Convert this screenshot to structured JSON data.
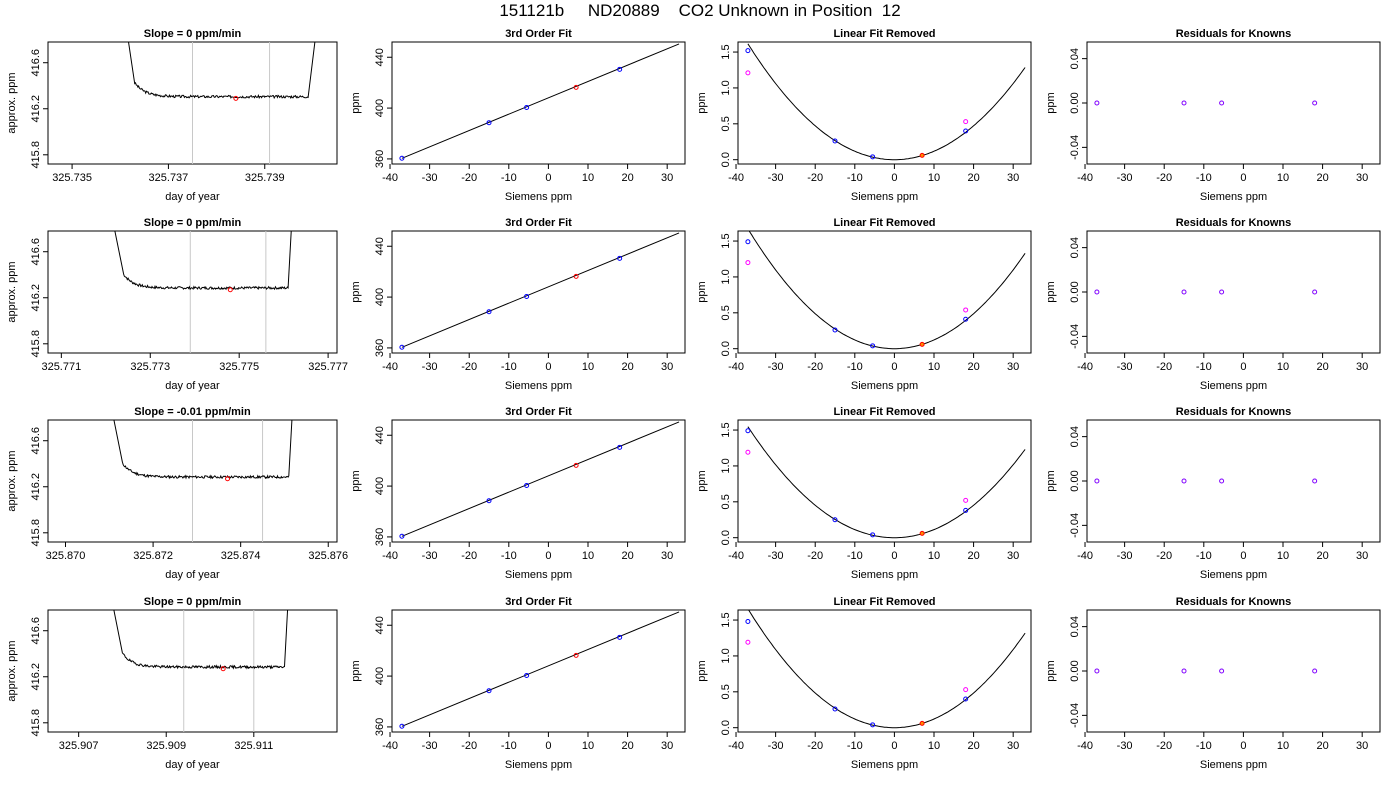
{
  "page": {
    "title": "151121b     ND20889    CO2 Unknown in Position  12"
  },
  "colors": {
    "background": "#ffffff",
    "axis": "#000000",
    "trace": "#000000",
    "vline": "#c8c8c8",
    "unknown_point": "#ff0000",
    "known_point": "#0000ff",
    "linear_residual_point": "#ff00ff",
    "unknown_removed_point": "#ff8c00",
    "residual_point": "#8000ff"
  },
  "chart_data": [
    {
      "type": "line",
      "panel": "trace",
      "title": "Slope =  0  ppm/min",
      "xlabel": "day of year",
      "ylabel": "approx. ppm",
      "xlim": [
        325.7345,
        325.7405
      ],
      "ylim": [
        415.72,
        416.78
      ],
      "xticks": [
        "325.735",
        "325.737",
        "325.739"
      ],
      "xtick_values": [
        325.735,
        325.737,
        325.739
      ],
      "yticks": [
        "415.8",
        "416.2",
        "416.6"
      ],
      "ytick_values": [
        415.8,
        416.2,
        416.6
      ],
      "t_start": 325.7361,
      "t_drop_end": 325.7363,
      "t_rise": 325.7399,
      "t_end": 325.7401,
      "baseline": 416.305,
      "noise_seed": 3,
      "vlines": [
        325.7375,
        325.7391
      ],
      "marker": {
        "x": 325.7384,
        "y": 416.29
      }
    },
    {
      "type": "line",
      "panel": "fit",
      "title": "3rd Order Fit",
      "xlabel": "Siemens ppm",
      "ylabel": "ppm",
      "xlim": [
        -39.5,
        34.5
      ],
      "ylim": [
        356,
        452
      ],
      "xticks": [
        "-40",
        "-30",
        "-20",
        "-10",
        "0",
        "10",
        "20",
        "30"
      ],
      "xtick_values": [
        -40,
        -30,
        -20,
        -10,
        0,
        10,
        20,
        30
      ],
      "yticks": [
        "360",
        "400",
        "440"
      ],
      "ytick_values": [
        360,
        400,
        440
      ],
      "fit_line": {
        "x0": -37,
        "y0": 360.5,
        "x1": 33,
        "y1": 450.5
      },
      "known_points": [
        {
          "x": -37,
          "y": 360.5
        },
        {
          "x": -15,
          "y": 388.5
        },
        {
          "x": -5.5,
          "y": 400.5
        },
        {
          "x": 18,
          "y": 430.5
        }
      ],
      "unknown_point": {
        "x": 7,
        "y": 416.3
      }
    },
    {
      "type": "scatter",
      "panel": "linear_removed",
      "title": "Linear Fit Removed",
      "xlabel": "Siemens ppm",
      "ylabel": "ppm",
      "xlim": [
        -39.5,
        34.5
      ],
      "ylim": [
        -0.06,
        1.64
      ],
      "xticks": [
        "-40",
        "-30",
        "-20",
        "-10",
        "0",
        "10",
        "20",
        "30"
      ],
      "xtick_values": [
        -40,
        -30,
        -20,
        -10,
        0,
        10,
        20,
        30
      ],
      "yticks": [
        "0.0",
        "0.5",
        "1.0",
        "1.5"
      ],
      "ytick_values": [
        0,
        0.5,
        1.0,
        1.5
      ],
      "curve_coef": 0.00118,
      "known_points": [
        {
          "x": -37,
          "y": 1.52
        },
        {
          "x": -15,
          "y": 0.26
        },
        {
          "x": -5.5,
          "y": 0.04
        },
        {
          "x": 18,
          "y": 0.4
        }
      ],
      "linear_points": [
        {
          "x": -37,
          "y": 1.21
        },
        {
          "x": 18,
          "y": 0.53
        }
      ],
      "unknown_point": {
        "x": 7,
        "y": 0.06
      }
    },
    {
      "type": "scatter",
      "panel": "residuals",
      "title": "Residuals for Knowns",
      "xlabel": "Siemens ppm",
      "ylabel": "ppm",
      "xlim": [
        -39.5,
        34.5
      ],
      "ylim": [
        -0.055,
        0.055
      ],
      "xticks": [
        "-40",
        "-30",
        "-20",
        "-10",
        "0",
        "10",
        "20",
        "30"
      ],
      "xtick_values": [
        -40,
        -30,
        -20,
        -10,
        0,
        10,
        20,
        30
      ],
      "yticks": [
        "-0.04",
        "0.00",
        "0.04"
      ],
      "ytick_values": [
        -0.04,
        0,
        0.04
      ],
      "points": [
        {
          "x": -37,
          "y": 0
        },
        {
          "x": -15,
          "y": 0
        },
        {
          "x": -5.5,
          "y": 0
        },
        {
          "x": 18,
          "y": 0
        }
      ]
    },
    {
      "type": "line",
      "panel": "trace",
      "title": "Slope =  0  ppm/min",
      "xlabel": "day of year",
      "ylabel": "approx. ppm",
      "xlim": [
        325.7707,
        325.7772
      ],
      "ylim": [
        415.72,
        416.78
      ],
      "xticks": [
        "325.771",
        "325.773",
        "325.775",
        "325.777"
      ],
      "xtick_values": [
        325.771,
        325.773,
        325.775,
        325.777
      ],
      "yticks": [
        "415.8",
        "416.2",
        "416.6"
      ],
      "ytick_values": [
        415.8,
        416.2,
        416.6
      ],
      "t_start": 325.7721,
      "t_drop_end": 325.7724,
      "t_rise": 325.7761,
      "t_end": 325.7762,
      "baseline": 416.285,
      "noise_seed": 7,
      "vlines": [
        325.7739,
        325.7756
      ],
      "marker": {
        "x": 325.7748,
        "y": 416.27
      }
    },
    {
      "type": "line",
      "panel": "fit",
      "title": "3rd Order Fit",
      "xlabel": "Siemens ppm",
      "ylabel": "ppm",
      "xlim": [
        -39.5,
        34.5
      ],
      "ylim": [
        356,
        452
      ],
      "xticks": [
        "-40",
        "-30",
        "-20",
        "-10",
        "0",
        "10",
        "20",
        "30"
      ],
      "xtick_values": [
        -40,
        -30,
        -20,
        -10,
        0,
        10,
        20,
        30
      ],
      "yticks": [
        "360",
        "400",
        "440"
      ],
      "ytick_values": [
        360,
        400,
        440
      ],
      "fit_line": {
        "x0": -37,
        "y0": 360.5,
        "x1": 33,
        "y1": 450.5
      },
      "known_points": [
        {
          "x": -37,
          "y": 360.5
        },
        {
          "x": -15,
          "y": 388.5
        },
        {
          "x": -5.5,
          "y": 400.5
        },
        {
          "x": 18,
          "y": 430.5
        }
      ],
      "unknown_point": {
        "x": 7,
        "y": 416.3
      }
    },
    {
      "type": "scatter",
      "panel": "linear_removed",
      "title": "Linear Fit Removed",
      "xlabel": "Siemens ppm",
      "ylabel": "ppm",
      "xlim": [
        -39.5,
        34.5
      ],
      "ylim": [
        -0.06,
        1.64
      ],
      "xticks": [
        "-40",
        "-30",
        "-20",
        "-10",
        "0",
        "10",
        "20",
        "30"
      ],
      "xtick_values": [
        -40,
        -30,
        -20,
        -10,
        0,
        10,
        20,
        30
      ],
      "yticks": [
        "0.0",
        "0.5",
        "1.0",
        "1.5"
      ],
      "ytick_values": [
        0,
        0.5,
        1.0,
        1.5
      ],
      "curve_coef": 0.00122,
      "known_points": [
        {
          "x": -37,
          "y": 1.49
        },
        {
          "x": -15,
          "y": 0.26
        },
        {
          "x": -5.5,
          "y": 0.04
        },
        {
          "x": 18,
          "y": 0.41
        }
      ],
      "linear_points": [
        {
          "x": -37,
          "y": 1.2
        },
        {
          "x": 18,
          "y": 0.54
        }
      ],
      "unknown_point": {
        "x": 7,
        "y": 0.06
      }
    },
    {
      "type": "scatter",
      "panel": "residuals",
      "title": "Residuals for Knowns",
      "xlabel": "Siemens ppm",
      "ylabel": "ppm",
      "xlim": [
        -39.5,
        34.5
      ],
      "ylim": [
        -0.055,
        0.055
      ],
      "xticks": [
        "-40",
        "-30",
        "-20",
        "-10",
        "0",
        "10",
        "20",
        "30"
      ],
      "xtick_values": [
        -40,
        -30,
        -20,
        -10,
        0,
        10,
        20,
        30
      ],
      "yticks": [
        "-0.04",
        "0.00",
        "0.04"
      ],
      "ytick_values": [
        -0.04,
        0,
        0.04
      ],
      "points": [
        {
          "x": -37,
          "y": 0
        },
        {
          "x": -15,
          "y": 0
        },
        {
          "x": -5.5,
          "y": 0
        },
        {
          "x": 18,
          "y": 0
        }
      ]
    },
    {
      "type": "line",
      "panel": "trace",
      "title": "Slope =  -0.01  ppm/min",
      "xlabel": "day of year",
      "ylabel": "approx. ppm",
      "xlim": [
        325.8696,
        325.8762
      ],
      "ylim": [
        415.72,
        416.78
      ],
      "xticks": [
        "325.870",
        "325.872",
        "325.874",
        "325.876"
      ],
      "xtick_values": [
        325.87,
        325.872,
        325.874,
        325.876
      ],
      "yticks": [
        "415.8",
        "416.2",
        "416.6"
      ],
      "ytick_values": [
        415.8,
        416.2,
        416.6
      ],
      "t_start": 325.871,
      "t_drop_end": 325.8713,
      "t_rise": 325.8751,
      "t_end": 325.8752,
      "baseline": 416.285,
      "noise_seed": 11,
      "vlines": [
        325.8729,
        325.8745
      ],
      "marker": {
        "x": 325.8737,
        "y": 416.27
      }
    },
    {
      "type": "line",
      "panel": "fit",
      "title": "3rd Order Fit",
      "xlabel": "Siemens ppm",
      "ylabel": "ppm",
      "xlim": [
        -39.5,
        34.5
      ],
      "ylim": [
        356,
        452
      ],
      "xticks": [
        "-40",
        "-30",
        "-20",
        "-10",
        "0",
        "10",
        "20",
        "30"
      ],
      "xtick_values": [
        -40,
        -30,
        -20,
        -10,
        0,
        10,
        20,
        30
      ],
      "yticks": [
        "360",
        "400",
        "440"
      ],
      "ytick_values": [
        360,
        400,
        440
      ],
      "fit_line": {
        "x0": -37,
        "y0": 360.5,
        "x1": 33,
        "y1": 450.5
      },
      "known_points": [
        {
          "x": -37,
          "y": 360.5
        },
        {
          "x": -15,
          "y": 388.5
        },
        {
          "x": -5.5,
          "y": 400.5
        },
        {
          "x": 18,
          "y": 430.5
        }
      ],
      "unknown_point": {
        "x": 7,
        "y": 416.3
      }
    },
    {
      "type": "scatter",
      "panel": "linear_removed",
      "title": "Linear Fit Removed",
      "xlabel": "Siemens ppm",
      "ylabel": "ppm",
      "xlim": [
        -39.5,
        34.5
      ],
      "ylim": [
        -0.06,
        1.64
      ],
      "xticks": [
        "-40",
        "-30",
        "-20",
        "-10",
        "0",
        "10",
        "20",
        "30"
      ],
      "xtick_values": [
        -40,
        -30,
        -20,
        -10,
        0,
        10,
        20,
        30
      ],
      "yticks": [
        "0.0",
        "0.5",
        "1.0",
        "1.5"
      ],
      "ytick_values": [
        0,
        0.5,
        1.0,
        1.5
      ],
      "curve_coef": 0.00113,
      "known_points": [
        {
          "x": -37,
          "y": 1.49
        },
        {
          "x": -15,
          "y": 0.25
        },
        {
          "x": -5.5,
          "y": 0.04
        },
        {
          "x": 18,
          "y": 0.38
        }
      ],
      "linear_points": [
        {
          "x": -37,
          "y": 1.19
        },
        {
          "x": 18,
          "y": 0.52
        }
      ],
      "unknown_point": {
        "x": 7,
        "y": 0.06
      }
    },
    {
      "type": "scatter",
      "panel": "residuals",
      "title": "Residuals for Knowns",
      "xlabel": "Siemens ppm",
      "ylabel": "ppm",
      "xlim": [
        -39.5,
        34.5
      ],
      "ylim": [
        -0.055,
        0.055
      ],
      "xticks": [
        "-40",
        "-30",
        "-20",
        "-10",
        "0",
        "10",
        "20",
        "30"
      ],
      "xtick_values": [
        -40,
        -30,
        -20,
        -10,
        0,
        10,
        20,
        30
      ],
      "yticks": [
        "-0.04",
        "0.00",
        "0.04"
      ],
      "ytick_values": [
        -0.04,
        0,
        0.04
      ],
      "points": [
        {
          "x": -37,
          "y": 0
        },
        {
          "x": -15,
          "y": 0
        },
        {
          "x": -5.5,
          "y": 0
        },
        {
          "x": 18,
          "y": 0
        }
      ]
    },
    {
      "type": "line",
      "panel": "trace",
      "title": "Slope =  0  ppm/min",
      "xlabel": "day of year",
      "ylabel": "approx. ppm",
      "xlim": [
        325.9063,
        325.9129
      ],
      "ylim": [
        415.72,
        416.78
      ],
      "xticks": [
        "325.907",
        "325.909",
        "325.911"
      ],
      "xtick_values": [
        325.907,
        325.909,
        325.911
      ],
      "yticks": [
        "415.8",
        "416.2",
        "416.6"
      ],
      "ytick_values": [
        415.8,
        416.2,
        416.6
      ],
      "t_start": 325.9077,
      "t_drop_end": 325.908,
      "t_rise": 325.9117,
      "t_end": 325.9118,
      "baseline": 416.285,
      "noise_seed": 19,
      "vlines": [
        325.9094,
        325.911
      ],
      "marker": {
        "x": 325.9103,
        "y": 416.27
      }
    },
    {
      "type": "line",
      "panel": "fit",
      "title": "3rd Order Fit",
      "xlabel": "Siemens ppm",
      "ylabel": "ppm",
      "xlim": [
        -39.5,
        34.5
      ],
      "ylim": [
        356,
        452
      ],
      "xticks": [
        "-40",
        "-30",
        "-20",
        "-10",
        "0",
        "10",
        "20",
        "30"
      ],
      "xtick_values": [
        -40,
        -30,
        -20,
        -10,
        0,
        10,
        20,
        30
      ],
      "yticks": [
        "360",
        "400",
        "440"
      ],
      "ytick_values": [
        360,
        400,
        440
      ],
      "fit_line": {
        "x0": -37,
        "y0": 360.5,
        "x1": 33,
        "y1": 450.5
      },
      "known_points": [
        {
          "x": -37,
          "y": 360.5
        },
        {
          "x": -15,
          "y": 388.5
        },
        {
          "x": -5.5,
          "y": 400.5
        },
        {
          "x": 18,
          "y": 430.5
        }
      ],
      "unknown_point": {
        "x": 7,
        "y": 416.3
      }
    },
    {
      "type": "scatter",
      "panel": "linear_removed",
      "title": "Linear Fit Removed",
      "xlabel": "Siemens ppm",
      "ylabel": "ppm",
      "xlim": [
        -39.5,
        34.5
      ],
      "ylim": [
        -0.06,
        1.64
      ],
      "xticks": [
        "-40",
        "-30",
        "-20",
        "-10",
        "0",
        "10",
        "20",
        "30"
      ],
      "xtick_values": [
        -40,
        -30,
        -20,
        -10,
        0,
        10,
        20,
        30
      ],
      "yticks": [
        "0.0",
        "0.5",
        "1.0",
        "1.5"
      ],
      "ytick_values": [
        0,
        0.5,
        1.0,
        1.5
      ],
      "curve_coef": 0.00121,
      "known_points": [
        {
          "x": -37,
          "y": 1.48
        },
        {
          "x": -15,
          "y": 0.26
        },
        {
          "x": -5.5,
          "y": 0.04
        },
        {
          "x": 18,
          "y": 0.4
        }
      ],
      "linear_points": [
        {
          "x": -37,
          "y": 1.19
        },
        {
          "x": 18,
          "y": 0.53
        }
      ],
      "unknown_point": {
        "x": 7,
        "y": 0.06
      }
    },
    {
      "type": "scatter",
      "panel": "residuals",
      "title": "Residuals for Knowns",
      "xlabel": "Siemens ppm",
      "ylabel": "ppm",
      "xlim": [
        -39.5,
        34.5
      ],
      "ylim": [
        -0.055,
        0.055
      ],
      "xticks": [
        "-40",
        "-30",
        "-20",
        "-10",
        "0",
        "10",
        "20",
        "30"
      ],
      "xtick_values": [
        -40,
        -30,
        -20,
        -10,
        0,
        10,
        20,
        30
      ],
      "yticks": [
        "-0.04",
        "0.00",
        "0.04"
      ],
      "ytick_values": [
        -0.04,
        0,
        0.04
      ],
      "points": [
        {
          "x": -37,
          "y": 0
        },
        {
          "x": -15,
          "y": 0
        },
        {
          "x": -5.5,
          "y": 0
        },
        {
          "x": 18,
          "y": 0
        }
      ]
    }
  ]
}
